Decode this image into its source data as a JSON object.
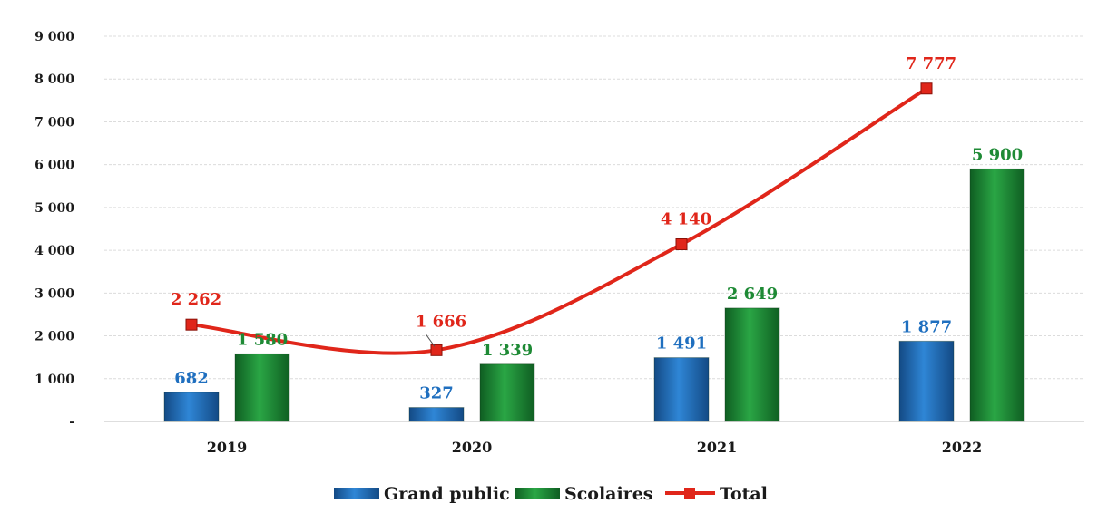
{
  "chart_data": {
    "type": "bar",
    "categories": [
      "2019",
      "2020",
      "2021",
      "2022"
    ],
    "series": [
      {
        "name": "Grand public",
        "type": "bar",
        "color": "#1f6fbf",
        "values": [
          682,
          327,
          1491,
          1877
        ],
        "labels": [
          "682",
          "327",
          "1 491",
          "1 877"
        ]
      },
      {
        "name": "Scolaires",
        "type": "bar",
        "color": "#1e8a35",
        "values": [
          1580,
          1339,
          2649,
          5900
        ],
        "labels": [
          "1 580",
          "1 339",
          "2 649",
          "5 900"
        ]
      },
      {
        "name": "Total",
        "type": "line",
        "color": "#e0261a",
        "values": [
          2262,
          1666,
          4140,
          7777
        ],
        "labels": [
          "2 262",
          "1 666",
          "4 140",
          "7 777"
        ]
      }
    ],
    "ylim": [
      0,
      9000
    ],
    "yticks": [
      0,
      1000,
      2000,
      3000,
      4000,
      5000,
      6000,
      7000,
      8000,
      9000
    ],
    "ytick_labels": [
      "-",
      "1 000",
      "2 000",
      "3 000",
      "4 000",
      "5 000",
      "6 000",
      "7 000",
      "8 000",
      "9 000"
    ],
    "grid": true,
    "legend_position": "bottom",
    "title": "",
    "xlabel": "",
    "ylabel": ""
  }
}
